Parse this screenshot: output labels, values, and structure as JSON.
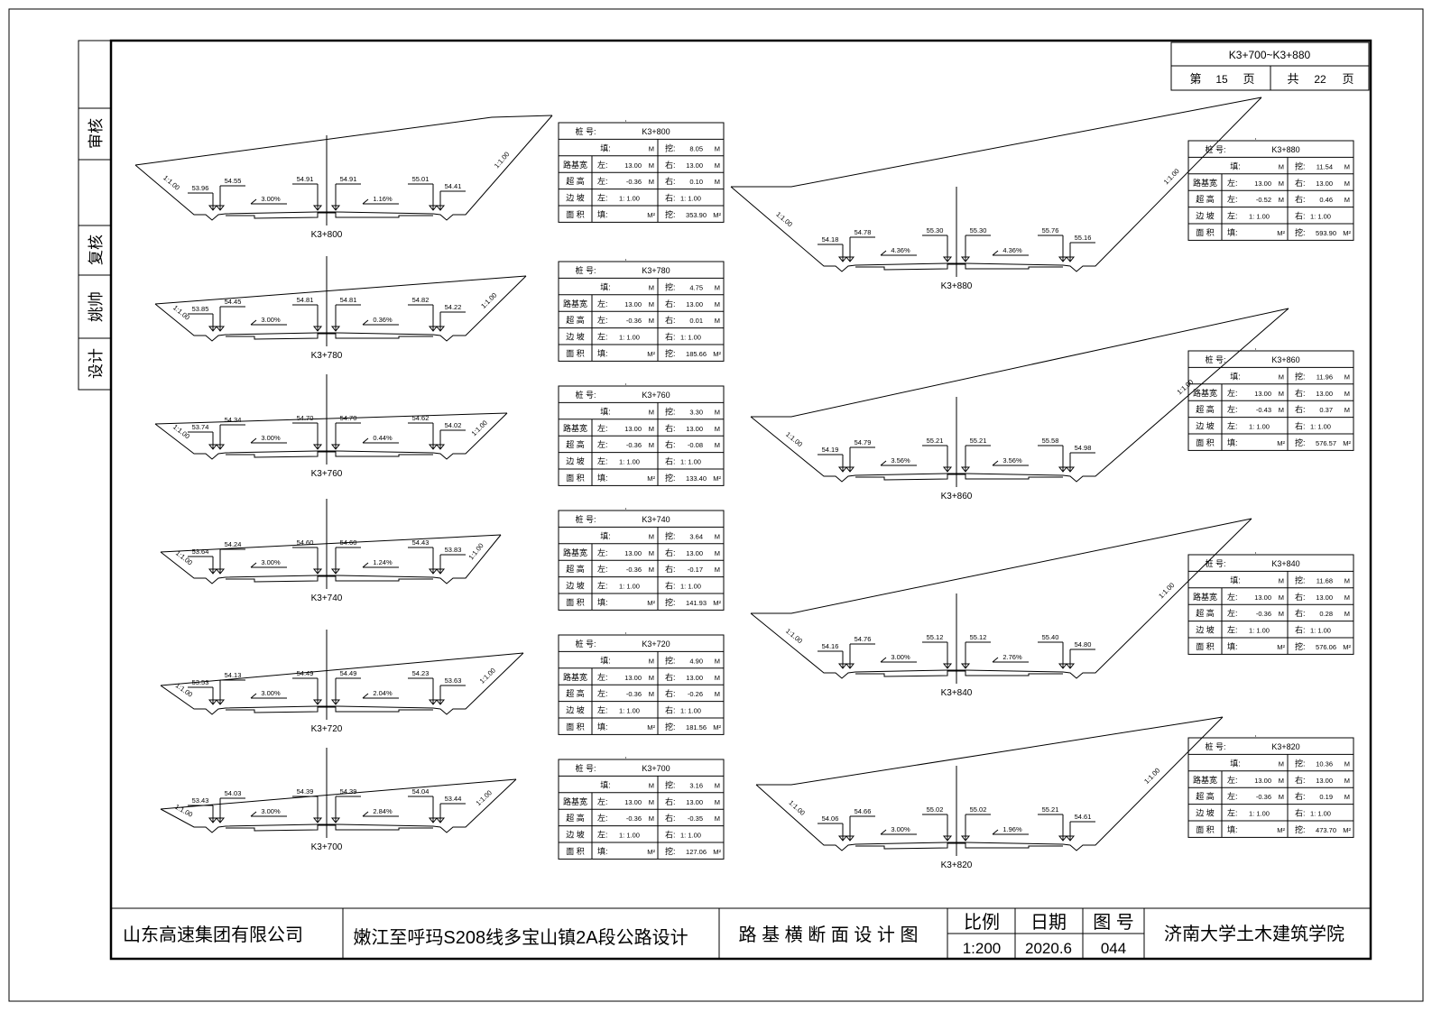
{
  "page_tag": {
    "range": "K3+700~K3+880",
    "page_prefix": "第",
    "page_no": "15",
    "page_suffix": "页",
    "total_prefix": "共",
    "total": "22",
    "total_suffix": "页"
  },
  "side_strip": {
    "review": "审核",
    "recheck": "复核",
    "designer": "姚帅",
    "design": "设计"
  },
  "title_block": {
    "company": "山东高速集团有限公司",
    "project": "嫩江至呼玛S208线多宝山镇2A段公路设计",
    "drawing_name": "路 基 横 断 面 设 计 图",
    "scale_label": "比例",
    "scale": "1:200",
    "date_label": "日期",
    "date": "2020.6",
    "number_label": "图 号",
    "number": "044",
    "institute": "济南大学土木建筑学院"
  },
  "table_labels": {
    "station": "桩  号:",
    "fill": "填:",
    "cut": "挖:",
    "width": "路基宽",
    "superelev": "超  高",
    "slope": "边  坡",
    "area": "面  积",
    "left": "左:",
    "right": "右:",
    "unit_m": "M",
    "unit_m2": "M²"
  },
  "slope_ratio": "1:1.00",
  "sections": [
    {
      "station": "K3+800",
      "fill": "",
      "cut": "8.05",
      "width_left": "13.00",
      "width_right": "13.00",
      "super_left": "-0.36",
      "super_right": "0.10",
      "slope_left": "1: 1.00",
      "slope_right": "1: 1.00",
      "area_fill": "",
      "area_cut": "353.90",
      "elevations": [
        "53.96",
        "54.55",
        "54.91",
        "54.91",
        "55.01",
        "54.41"
      ],
      "crossfall_left": "3.00%",
      "crossfall_right": "1.16%"
    },
    {
      "station": "K3+780",
      "fill": "",
      "cut": "4.75",
      "width_left": "13.00",
      "width_right": "13.00",
      "super_left": "-0.36",
      "super_right": "0.01",
      "slope_left": "1: 1.00",
      "slope_right": "1: 1.00",
      "area_fill": "",
      "area_cut": "185.66",
      "elevations": [
        "53.85",
        "54.45",
        "54.81",
        "54.81",
        "54.82",
        "54.22"
      ],
      "crossfall_left": "3.00%",
      "crossfall_right": "0.36%"
    },
    {
      "station": "K3+760",
      "fill": "",
      "cut": "3.30",
      "width_left": "13.00",
      "width_right": "13.00",
      "super_left": "-0.36",
      "super_right": "-0.08",
      "slope_left": "1: 1.00",
      "slope_right": "1: 1.00",
      "area_fill": "",
      "area_cut": "133.40",
      "elevations": [
        "53.74",
        "54.34",
        "54.70",
        "54.70",
        "54.62",
        "54.02"
      ],
      "crossfall_left": "3.00%",
      "crossfall_right": "0.44%"
    },
    {
      "station": "K3+740",
      "fill": "",
      "cut": "3.64",
      "width_left": "13.00",
      "width_right": "13.00",
      "super_left": "-0.36",
      "super_right": "-0.17",
      "slope_left": "1: 1.00",
      "slope_right": "1: 1.00",
      "area_fill": "",
      "area_cut": "141.93",
      "elevations": [
        "53.64",
        "54.24",
        "54.60",
        "54.60",
        "54.43",
        "53.83"
      ],
      "crossfall_left": "3.00%",
      "crossfall_right": "1.24%"
    },
    {
      "station": "K3+720",
      "fill": "",
      "cut": "4.90",
      "width_left": "13.00",
      "width_right": "13.00",
      "super_left": "-0.36",
      "super_right": "-0.26",
      "slope_left": "1: 1.00",
      "slope_right": "1: 1.00",
      "area_fill": "",
      "area_cut": "181.56",
      "elevations": [
        "53.53",
        "54.13",
        "54.49",
        "54.49",
        "54.23",
        "53.63"
      ],
      "crossfall_left": "3.00%",
      "crossfall_right": "2.04%"
    },
    {
      "station": "K3+700",
      "fill": "",
      "cut": "3.16",
      "width_left": "13.00",
      "width_right": "13.00",
      "super_left": "-0.36",
      "super_right": "-0.35",
      "slope_left": "1: 1.00",
      "slope_right": "1: 1.00",
      "area_fill": "",
      "area_cut": "127.06",
      "elevations": [
        "53.43",
        "54.03",
        "54.39",
        "54.39",
        "54.04",
        "53.44"
      ],
      "crossfall_left": "3.00%",
      "crossfall_right": "2.84%"
    },
    {
      "station": "K3+880",
      "fill": "",
      "cut": "11.54",
      "width_left": "13.00",
      "width_right": "13.00",
      "super_left": "-0.52",
      "super_right": "0.46",
      "slope_left": "1: 1.00",
      "slope_right": "1: 1.00",
      "area_fill": "",
      "area_cut": "593.90",
      "elevations": [
        "54.18",
        "54.78",
        "55.30",
        "55.30",
        "55.76",
        "55.16"
      ],
      "crossfall_left": "4.36%",
      "crossfall_right": "4.36%"
    },
    {
      "station": "K3+860",
      "fill": "",
      "cut": "11.96",
      "width_left": "13.00",
      "width_right": "13.00",
      "super_left": "-0.43",
      "super_right": "0.37",
      "slope_left": "1: 1.00",
      "slope_right": "1: 1.00",
      "area_fill": "",
      "area_cut": "576.57",
      "elevations": [
        "54.19",
        "54.79",
        "55.21",
        "55.21",
        "55.58",
        "54.98"
      ],
      "crossfall_left": "3.56%",
      "crossfall_right": "3.56%"
    },
    {
      "station": "K3+840",
      "fill": "",
      "cut": "11.68",
      "width_left": "13.00",
      "width_right": "13.00",
      "super_left": "-0.36",
      "super_right": "0.28",
      "slope_left": "1: 1.00",
      "slope_right": "1: 1.00",
      "area_fill": "",
      "area_cut": "576.06",
      "elevations": [
        "54.16",
        "54.76",
        "55.12",
        "55.12",
        "55.40",
        "54.80"
      ],
      "crossfall_left": "3.00%",
      "crossfall_right": "2.76%"
    },
    {
      "station": "K3+820",
      "fill": "",
      "cut": "10.36",
      "width_left": "13.00",
      "width_right": "13.00",
      "super_left": "-0.36",
      "super_right": "0.19",
      "slope_left": "1: 1.00",
      "slope_right": "1: 1.00",
      "area_fill": "",
      "area_cut": "473.70",
      "elevations": [
        "54.06",
        "54.66",
        "55.02",
        "55.02",
        "55.21",
        "54.61"
      ],
      "crossfall_left": "3.00%",
      "crossfall_right": "1.96%"
    }
  ]
}
